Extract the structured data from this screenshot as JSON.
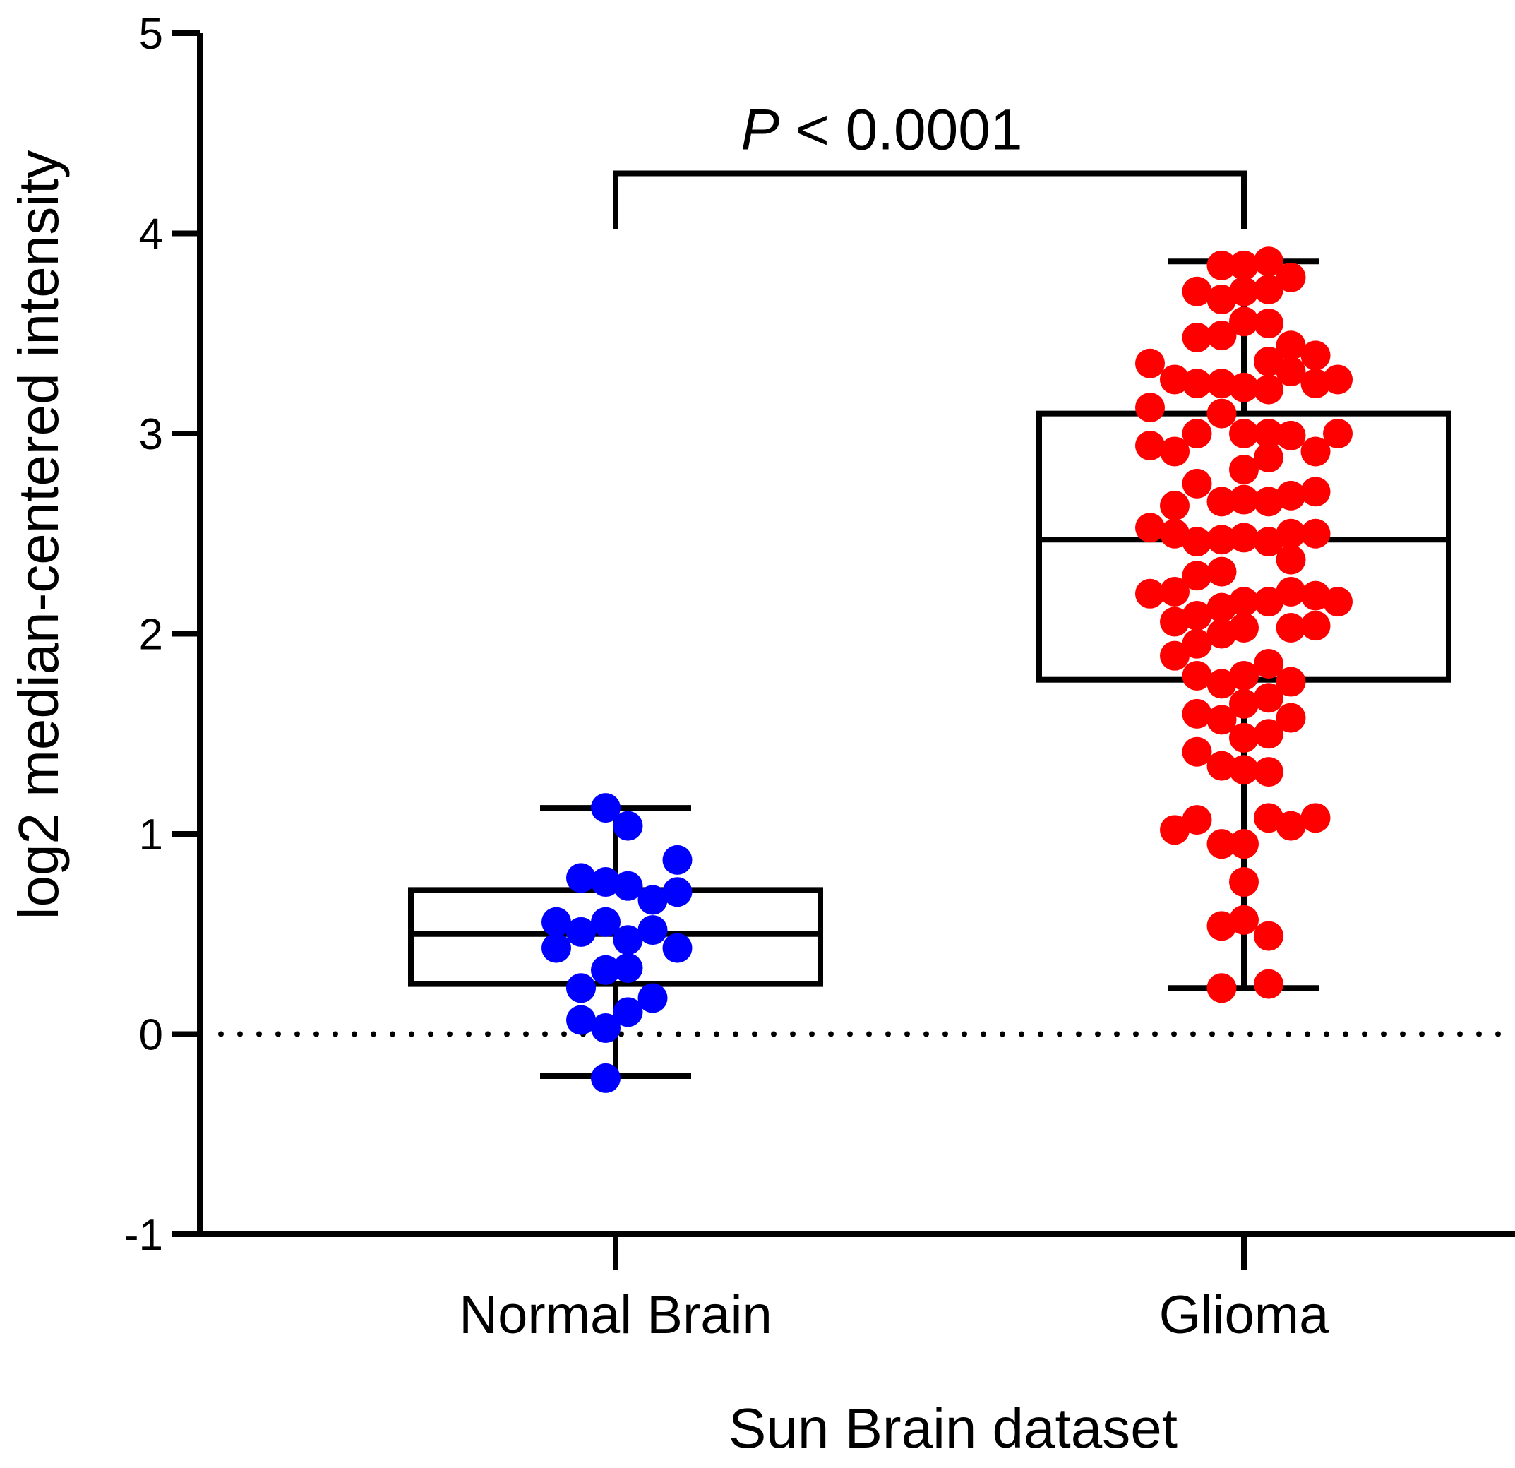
{
  "chart_data": {
    "type": "scatter",
    "subtype": "box-and-dot",
    "title": "",
    "xlabel": "Sun Brain dataset",
    "ylabel": "log2 median-centered intensity",
    "ylim": [
      -1,
      5
    ],
    "yticks": [
      -1,
      0,
      1,
      2,
      3,
      4,
      5
    ],
    "reference_line": {
      "y": 0,
      "style": "dotted"
    },
    "grid": false,
    "legend": "none",
    "categories": [
      "Normal Brain",
      "Glioma"
    ],
    "series": [
      {
        "name": "Normal Brain",
        "color": "#0000ff",
        "box": {
          "whisker_low": -0.21,
          "q1": 0.25,
          "median": 0.5,
          "q3": 0.72,
          "whisker_high": 1.13
        },
        "points": [
          [
            -1.2,
            0.56
          ],
          [
            -1.2,
            0.43
          ],
          [
            -0.7,
            0.78
          ],
          [
            -0.7,
            0.51
          ],
          [
            -0.7,
            0.23
          ],
          [
            -0.7,
            0.07
          ],
          [
            -0.2,
            1.13
          ],
          [
            -0.2,
            0.76
          ],
          [
            -0.2,
            0.56
          ],
          [
            -0.2,
            0.32
          ],
          [
            -0.2,
            0.03
          ],
          [
            -0.2,
            -0.22
          ],
          [
            0.25,
            1.04
          ],
          [
            0.25,
            0.74
          ],
          [
            0.25,
            0.47
          ],
          [
            0.25,
            0.33
          ],
          [
            0.25,
            0.11
          ],
          [
            0.75,
            0.67
          ],
          [
            0.75,
            0.52
          ],
          [
            0.75,
            0.18
          ],
          [
            1.25,
            0.87
          ],
          [
            1.25,
            0.71
          ],
          [
            1.25,
            0.43
          ]
        ]
      },
      {
        "name": "Glioma",
        "color": "#ff0000",
        "box": {
          "whisker_low": 0.23,
          "q1": 1.77,
          "median": 2.47,
          "q3": 3.1,
          "whisker_high": 3.86
        },
        "points": [
          [
            -1.9,
            3.35
          ],
          [
            -1.9,
            3.13
          ],
          [
            -1.9,
            2.94
          ],
          [
            -1.9,
            2.53
          ],
          [
            -1.9,
            2.2
          ],
          [
            -1.4,
            3.27
          ],
          [
            -1.4,
            2.91
          ],
          [
            -1.4,
            2.64
          ],
          [
            -1.4,
            2.5
          ],
          [
            -1.4,
            2.21
          ],
          [
            -1.4,
            2.06
          ],
          [
            -1.4,
            1.89
          ],
          [
            -1.4,
            1.02
          ],
          [
            -0.95,
            3.71
          ],
          [
            -0.95,
            3.48
          ],
          [
            -0.95,
            3.25
          ],
          [
            -0.95,
            3.0
          ],
          [
            -0.95,
            2.75
          ],
          [
            -0.95,
            2.46
          ],
          [
            -0.95,
            2.29
          ],
          [
            -0.95,
            2.09
          ],
          [
            -0.95,
            1.95
          ],
          [
            -0.95,
            1.79
          ],
          [
            -0.95,
            1.6
          ],
          [
            -0.95,
            1.41
          ],
          [
            -0.95,
            1.07
          ],
          [
            -0.45,
            3.84
          ],
          [
            -0.45,
            3.67
          ],
          [
            -0.45,
            3.49
          ],
          [
            -0.45,
            3.25
          ],
          [
            -0.45,
            3.1
          ],
          [
            -0.45,
            2.66
          ],
          [
            -0.45,
            2.47
          ],
          [
            -0.45,
            2.31
          ],
          [
            -0.45,
            2.13
          ],
          [
            -0.45,
            2.0
          ],
          [
            -0.45,
            1.75
          ],
          [
            -0.45,
            1.57
          ],
          [
            -0.45,
            1.34
          ],
          [
            -0.45,
            0.95
          ],
          [
            -0.45,
            0.54
          ],
          [
            -0.45,
            0.23
          ],
          [
            0.0,
            3.84
          ],
          [
            0.0,
            3.71
          ],
          [
            0.0,
            3.56
          ],
          [
            0.0,
            3.23
          ],
          [
            0.0,
            3.0
          ],
          [
            0.0,
            2.82
          ],
          [
            0.0,
            2.67
          ],
          [
            0.0,
            2.48
          ],
          [
            0.0,
            2.16
          ],
          [
            0.0,
            2.03
          ],
          [
            0.0,
            1.79
          ],
          [
            0.0,
            1.65
          ],
          [
            0.0,
            1.48
          ],
          [
            0.0,
            1.32
          ],
          [
            0.0,
            0.95
          ],
          [
            0.0,
            0.76
          ],
          [
            0.0,
            0.57
          ],
          [
            0.5,
            3.86
          ],
          [
            0.5,
            3.72
          ],
          [
            0.5,
            3.55
          ],
          [
            0.5,
            3.36
          ],
          [
            0.5,
            3.22
          ],
          [
            0.5,
            3.0
          ],
          [
            0.5,
            2.88
          ],
          [
            0.5,
            2.66
          ],
          [
            0.5,
            2.46
          ],
          [
            0.5,
            2.16
          ],
          [
            0.5,
            1.85
          ],
          [
            0.5,
            1.68
          ],
          [
            0.5,
            1.5
          ],
          [
            0.5,
            1.31
          ],
          [
            0.5,
            1.08
          ],
          [
            0.5,
            0.49
          ],
          [
            0.5,
            0.25
          ],
          [
            0.95,
            3.78
          ],
          [
            0.95,
            3.44
          ],
          [
            0.95,
            3.31
          ],
          [
            0.95,
            2.99
          ],
          [
            0.95,
            2.69
          ],
          [
            0.95,
            2.5
          ],
          [
            0.95,
            2.37
          ],
          [
            0.95,
            2.21
          ],
          [
            0.95,
            2.03
          ],
          [
            0.95,
            1.76
          ],
          [
            0.95,
            1.58
          ],
          [
            0.95,
            1.04
          ],
          [
            1.45,
            3.39
          ],
          [
            1.45,
            3.25
          ],
          [
            1.45,
            2.91
          ],
          [
            1.45,
            2.71
          ],
          [
            1.45,
            2.5
          ],
          [
            1.45,
            2.19
          ],
          [
            1.45,
            2.04
          ],
          [
            1.45,
            1.08
          ],
          [
            1.9,
            3.27
          ],
          [
            1.9,
            3.0
          ],
          [
            1.9,
            2.16
          ]
        ]
      }
    ],
    "annotation": {
      "text_italic": "P",
      "text_rest": " < 0.0001",
      "bracket_y": 4.3,
      "bracket_left_end_y": 4.02,
      "bracket_right_end_y": 4.02
    }
  }
}
